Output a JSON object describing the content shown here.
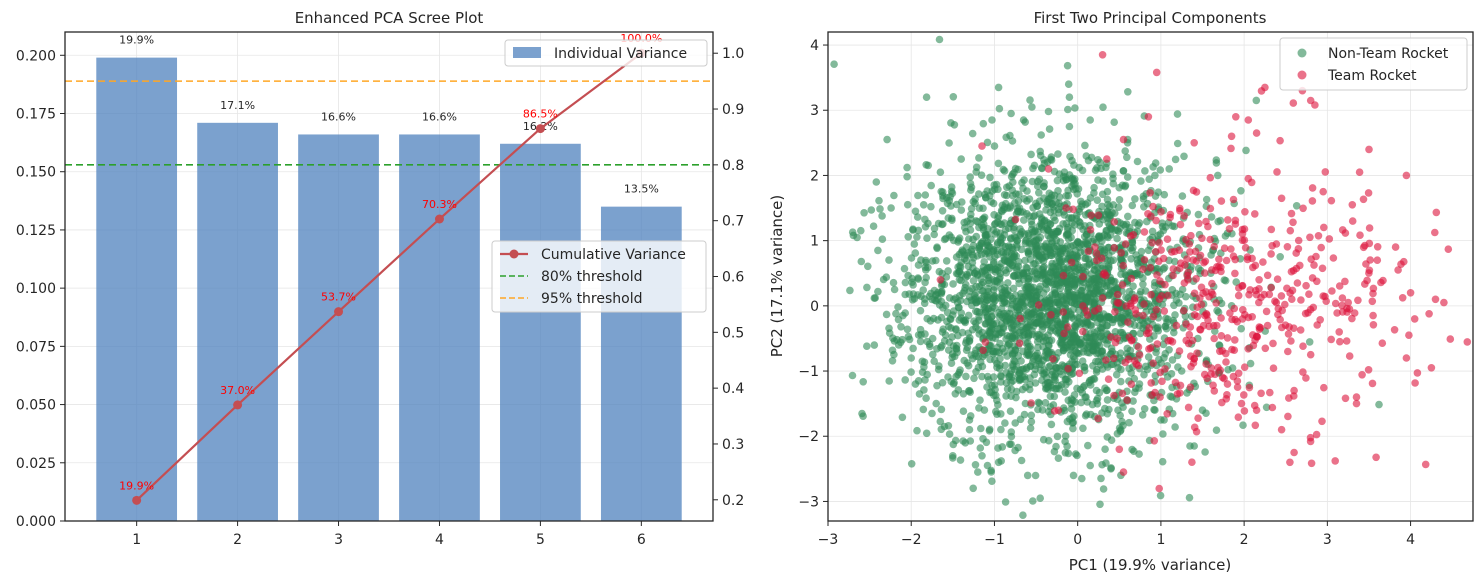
{
  "chart_data": [
    {
      "type": "bar+line",
      "title": "Enhanced PCA Scree Plot",
      "xlabel": "",
      "ylabel": "",
      "categories": [
        "1",
        "2",
        "3",
        "4",
        "5",
        "6"
      ],
      "x": [
        1,
        2,
        3,
        4,
        5,
        6
      ],
      "ylim": [
        0,
        0.21
      ],
      "y_ticks": [
        0.0,
        0.025,
        0.05,
        0.075,
        0.1,
        0.125,
        0.15,
        0.175,
        0.2
      ],
      "y_tick_labels": [
        "0.000",
        "0.025",
        "0.050",
        "0.075",
        "0.100",
        "0.125",
        "0.150",
        "0.175",
        "0.200"
      ],
      "y2lim": [
        0.162,
        1.038
      ],
      "y2_ticks": [
        0.2,
        0.3,
        0.4,
        0.5,
        0.6,
        0.7,
        0.8,
        0.9,
        1.0
      ],
      "y2_tick_labels": [
        "0.2",
        "0.3",
        "0.4",
        "0.5",
        "0.6",
        "0.7",
        "0.8",
        "0.9",
        "1.0"
      ],
      "grid": true,
      "series": [
        {
          "name": "Individual Variance",
          "kind": "bar",
          "axis": "left",
          "color": "#4f81bd",
          "values": [
            0.199,
            0.171,
            0.166,
            0.166,
            0.162,
            0.135
          ],
          "labels": [
            "19.9%",
            "17.1%",
            "16.6%",
            "16.6%",
            "16.2%",
            "13.5%"
          ]
        },
        {
          "name": "Cumulative Variance",
          "kind": "line",
          "axis": "right",
          "color": "#c44e52",
          "values": [
            0.199,
            0.37,
            0.537,
            0.703,
            0.865,
            1.0
          ],
          "labels": [
            "19.9%",
            "37.0%",
            "53.7%",
            "70.3%",
            "86.5%",
            "100.0%"
          ],
          "label_color": "#ff0000"
        }
      ],
      "thresholds": [
        {
          "name": "80% threshold",
          "value": 0.8,
          "axis": "right",
          "color": "#2ca02c"
        },
        {
          "name": "95% threshold",
          "value": 0.95,
          "axis": "right",
          "color": "#ffa726"
        }
      ],
      "legend_upper": {
        "position": "top-right",
        "entries": [
          "Individual Variance"
        ]
      },
      "legend_lower": {
        "position": "center-right",
        "entries": [
          "Cumulative Variance",
          "80% threshold",
          "95% threshold"
        ]
      }
    },
    {
      "type": "scatter",
      "title": "First Two Principal Components",
      "xlabel": "PC1 (19.9% variance)",
      "ylabel": "PC2 (17.1% variance)",
      "xlim": [
        -3.0,
        4.75
      ],
      "ylim": [
        -3.3,
        4.2
      ],
      "x_ticks": [
        -3,
        -2,
        -1,
        0,
        1,
        2,
        3,
        4
      ],
      "x_tick_labels": [
        "−3",
        "−2",
        "−1",
        "0",
        "1",
        "2",
        "3",
        "4"
      ],
      "y_ticks": [
        -3,
        -2,
        -1,
        0,
        1,
        2,
        3,
        4
      ],
      "y_tick_labels": [
        "−3",
        "−2",
        "−1",
        "0",
        "1",
        "2",
        "3",
        "4"
      ],
      "grid": true,
      "legend": {
        "position": "top-right",
        "entries": [
          "Non-Team Rocket",
          "Team Rocket"
        ]
      },
      "series": [
        {
          "name": "Non-Team Rocket",
          "color": "#2e8b57",
          "alpha": 0.6,
          "distribution": {
            "n": 2600,
            "x_mean": -0.3,
            "x_sd": 0.85,
            "y_mean": 0.15,
            "y_sd": 1.05,
            "seed": 11
          },
          "points": [
            [
              -2.65,
              1.05
            ],
            [
              -2.6,
              0.68
            ],
            [
              -2.42,
              1.9
            ],
            [
              -2.48,
              1.47
            ],
            [
              -2.35,
              1.38
            ],
            [
              -2.3,
              0.44
            ],
            [
              -2.2,
              0.25
            ],
            [
              -2.1,
              -0.15
            ],
            [
              -2.05,
              2.12
            ],
            [
              -2.05,
              1.98
            ],
            [
              -2.15,
              -0.6
            ],
            [
              -2.0,
              -0.8
            ],
            [
              -1.95,
              -1.2
            ],
            [
              -1.85,
              1.55
            ],
            [
              -1.7,
              -1.5
            ],
            [
              -1.6,
              -1.85
            ],
            [
              -1.5,
              -2.3
            ],
            [
              -1.3,
              -1.9
            ],
            [
              -1.2,
              -2.55
            ],
            [
              -0.95,
              -2.4
            ],
            [
              -0.45,
              -2.95
            ],
            [
              -0.8,
              2.95
            ],
            [
              -0.55,
              3.05
            ],
            [
              -0.35,
              2.98
            ],
            [
              -0.1,
              3.2
            ],
            [
              -0.65,
              2.85
            ],
            [
              1.1,
              2.1
            ],
            [
              1.35,
              -2.15
            ],
            [
              1.5,
              -1.6
            ],
            [
              1.45,
              1.4
            ],
            [
              1.4,
              -2.15
            ],
            [
              1.6,
              0.5
            ],
            [
              0.15,
              2.85
            ],
            [
              -0.1,
              2.75
            ],
            [
              0.6,
              2.5
            ],
            [
              1.0,
              -1.75
            ],
            [
              -1.0,
              2.45
            ],
            [
              -1.4,
              2.25
            ],
            [
              -2.4,
              0.85
            ],
            [
              0.4,
              -2.5
            ],
            [
              0.05,
              -2.65
            ],
            [
              0.15,
              -2.45
            ],
            [
              -0.05,
              -2.6
            ],
            [
              1.25,
              -1.0
            ],
            [
              1.3,
              0.95
            ],
            [
              -1.65,
              2.05
            ],
            [
              -1.9,
              -1.35
            ],
            [
              -1.75,
              -1.65
            ],
            [
              1.85,
              0.0
            ],
            [
              1.7,
              -0.6
            ],
            [
              -1.15,
              -2.3
            ],
            [
              -0.95,
              3.35
            ],
            [
              -0.6,
              -2.6
            ],
            [
              -1.35,
              -2.1
            ]
          ]
        },
        {
          "name": "Team Rocket",
          "color": "#dc143c",
          "alpha": 0.6,
          "distribution": {
            "n": 480,
            "x_mean": 1.7,
            "x_sd": 1.05,
            "y_mean": 0.05,
            "y_sd": 0.95,
            "seed": 29
          },
          "points": [
            [
              0.3,
              3.85
            ],
            [
              0.95,
              3.58
            ],
            [
              2.8,
              3.15
            ],
            [
              2.85,
              3.08
            ],
            [
              2.7,
              3.3
            ],
            [
              2.25,
              3.35
            ],
            [
              1.85,
              2.6
            ],
            [
              1.9,
              2.9
            ],
            [
              2.05,
              2.85
            ],
            [
              2.15,
              2.65
            ],
            [
              3.5,
              2.4
            ],
            [
              3.95,
              2.0
            ],
            [
              4.4,
              0.05
            ],
            [
              4.3,
              0.1
            ],
            [
              4.25,
              -0.95
            ],
            [
              4.0,
              0.2
            ],
            [
              3.95,
              -0.8
            ],
            [
              3.85,
              0.55
            ],
            [
              4.05,
              -0.2
            ],
            [
              3.35,
              -1.4
            ],
            [
              3.35,
              -1.5
            ],
            [
              2.6,
              -2.25
            ],
            [
              2.55,
              -2.4
            ],
            [
              2.45,
              -1.9
            ],
            [
              1.65,
              -1.05
            ],
            [
              0.5,
              -2.2
            ],
            [
              0.55,
              -2.55
            ],
            [
              1.2,
              -1.35
            ],
            [
              -1.65,
              0.4
            ],
            [
              -1.15,
              2.45
            ],
            [
              -0.35,
              2.1
            ],
            [
              0.35,
              2.25
            ],
            [
              0.55,
              2.55
            ],
            [
              0.85,
              2.9
            ],
            [
              1.4,
              2.5
            ],
            [
              2.95,
              0.15
            ],
            [
              3.25,
              0.05
            ],
            [
              3.6,
              0.7
            ],
            [
              3.55,
              -0.15
            ],
            [
              3.15,
              -0.55
            ],
            [
              2.8,
              -0.75
            ],
            [
              2.6,
              -1.3
            ],
            [
              2.15,
              -1.6
            ],
            [
              1.8,
              -1.2
            ],
            [
              2.45,
              1.65
            ],
            [
              2.05,
              1.95
            ],
            [
              2.95,
              1.75
            ],
            [
              3.3,
              1.55
            ]
          ]
        }
      ]
    }
  ]
}
